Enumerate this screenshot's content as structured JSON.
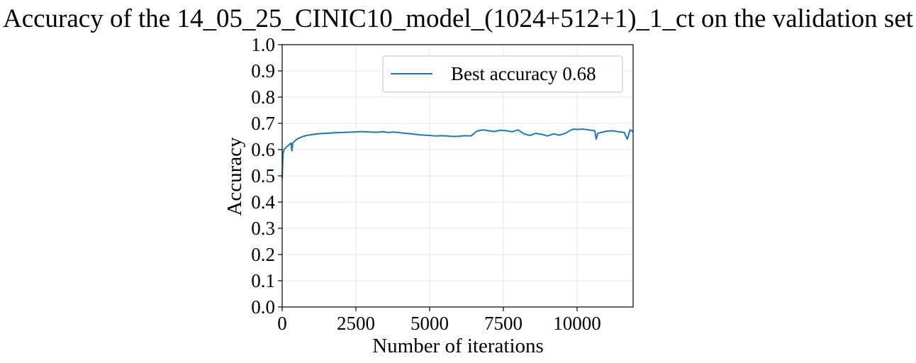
{
  "chart_data": {
    "type": "line",
    "title": "Accuracy of the 14_05_25_CINIC10_model_(1024+512+1)_1_ct on the validation set",
    "xlabel": "Number of iterations",
    "ylabel": "Accuracy",
    "xlim": [
      0,
      11900
    ],
    "ylim": [
      0.0,
      1.0
    ],
    "xticks": [
      0,
      2500,
      5000,
      7500,
      10000
    ],
    "xtick_labels": [
      "0",
      "2500",
      "5000",
      "7500",
      "10000"
    ],
    "yticks": [
      0.0,
      0.1,
      0.2,
      0.3,
      0.4,
      0.5,
      0.6,
      0.7,
      0.8,
      0.9,
      1.0
    ],
    "ytick_labels": [
      "0.0",
      "0.1",
      "0.2",
      "0.3",
      "0.4",
      "0.5",
      "0.6",
      "0.7",
      "0.8",
      "0.9",
      "1.0"
    ],
    "grid": true,
    "legend_position": "upper-right",
    "series": [
      {
        "name": "Best accuracy 0.68",
        "color": "#1f77b4",
        "x": [
          0,
          30,
          60,
          100,
          150,
          200,
          250,
          300,
          330,
          360,
          400,
          500,
          600,
          700,
          800,
          900,
          1000,
          1200,
          1400,
          1600,
          1800,
          2000,
          2200,
          2400,
          2600,
          2800,
          3000,
          3200,
          3400,
          3600,
          3800,
          4000,
          4200,
          4400,
          4600,
          4800,
          5000,
          5200,
          5400,
          5600,
          5800,
          6000,
          6200,
          6400,
          6600,
          6700,
          6800,
          7000,
          7200,
          7400,
          7600,
          7800,
          8000,
          8200,
          8400,
          8600,
          8800,
          9000,
          9200,
          9400,
          9600,
          9800,
          9900,
          10000,
          10200,
          10400,
          10600,
          10650,
          10700,
          10800,
          11000,
          11200,
          11400,
          11600,
          11700,
          11800,
          11900
        ],
        "y": [
          0.49,
          0.585,
          0.6,
          0.605,
          0.61,
          0.615,
          0.62,
          0.625,
          0.595,
          0.625,
          0.63,
          0.64,
          0.645,
          0.65,
          0.653,
          0.655,
          0.657,
          0.66,
          0.662,
          0.663,
          0.664,
          0.665,
          0.666,
          0.667,
          0.668,
          0.668,
          0.667,
          0.666,
          0.668,
          0.665,
          0.667,
          0.664,
          0.662,
          0.66,
          0.657,
          0.655,
          0.654,
          0.652,
          0.653,
          0.652,
          0.65,
          0.651,
          0.653,
          0.652,
          0.67,
          0.673,
          0.675,
          0.672,
          0.669,
          0.674,
          0.672,
          0.668,
          0.675,
          0.66,
          0.654,
          0.662,
          0.658,
          0.652,
          0.66,
          0.655,
          0.662,
          0.675,
          0.678,
          0.677,
          0.678,
          0.675,
          0.672,
          0.64,
          0.662,
          0.665,
          0.67,
          0.672,
          0.668,
          0.665,
          0.64,
          0.675,
          0.668
        ]
      }
    ]
  }
}
